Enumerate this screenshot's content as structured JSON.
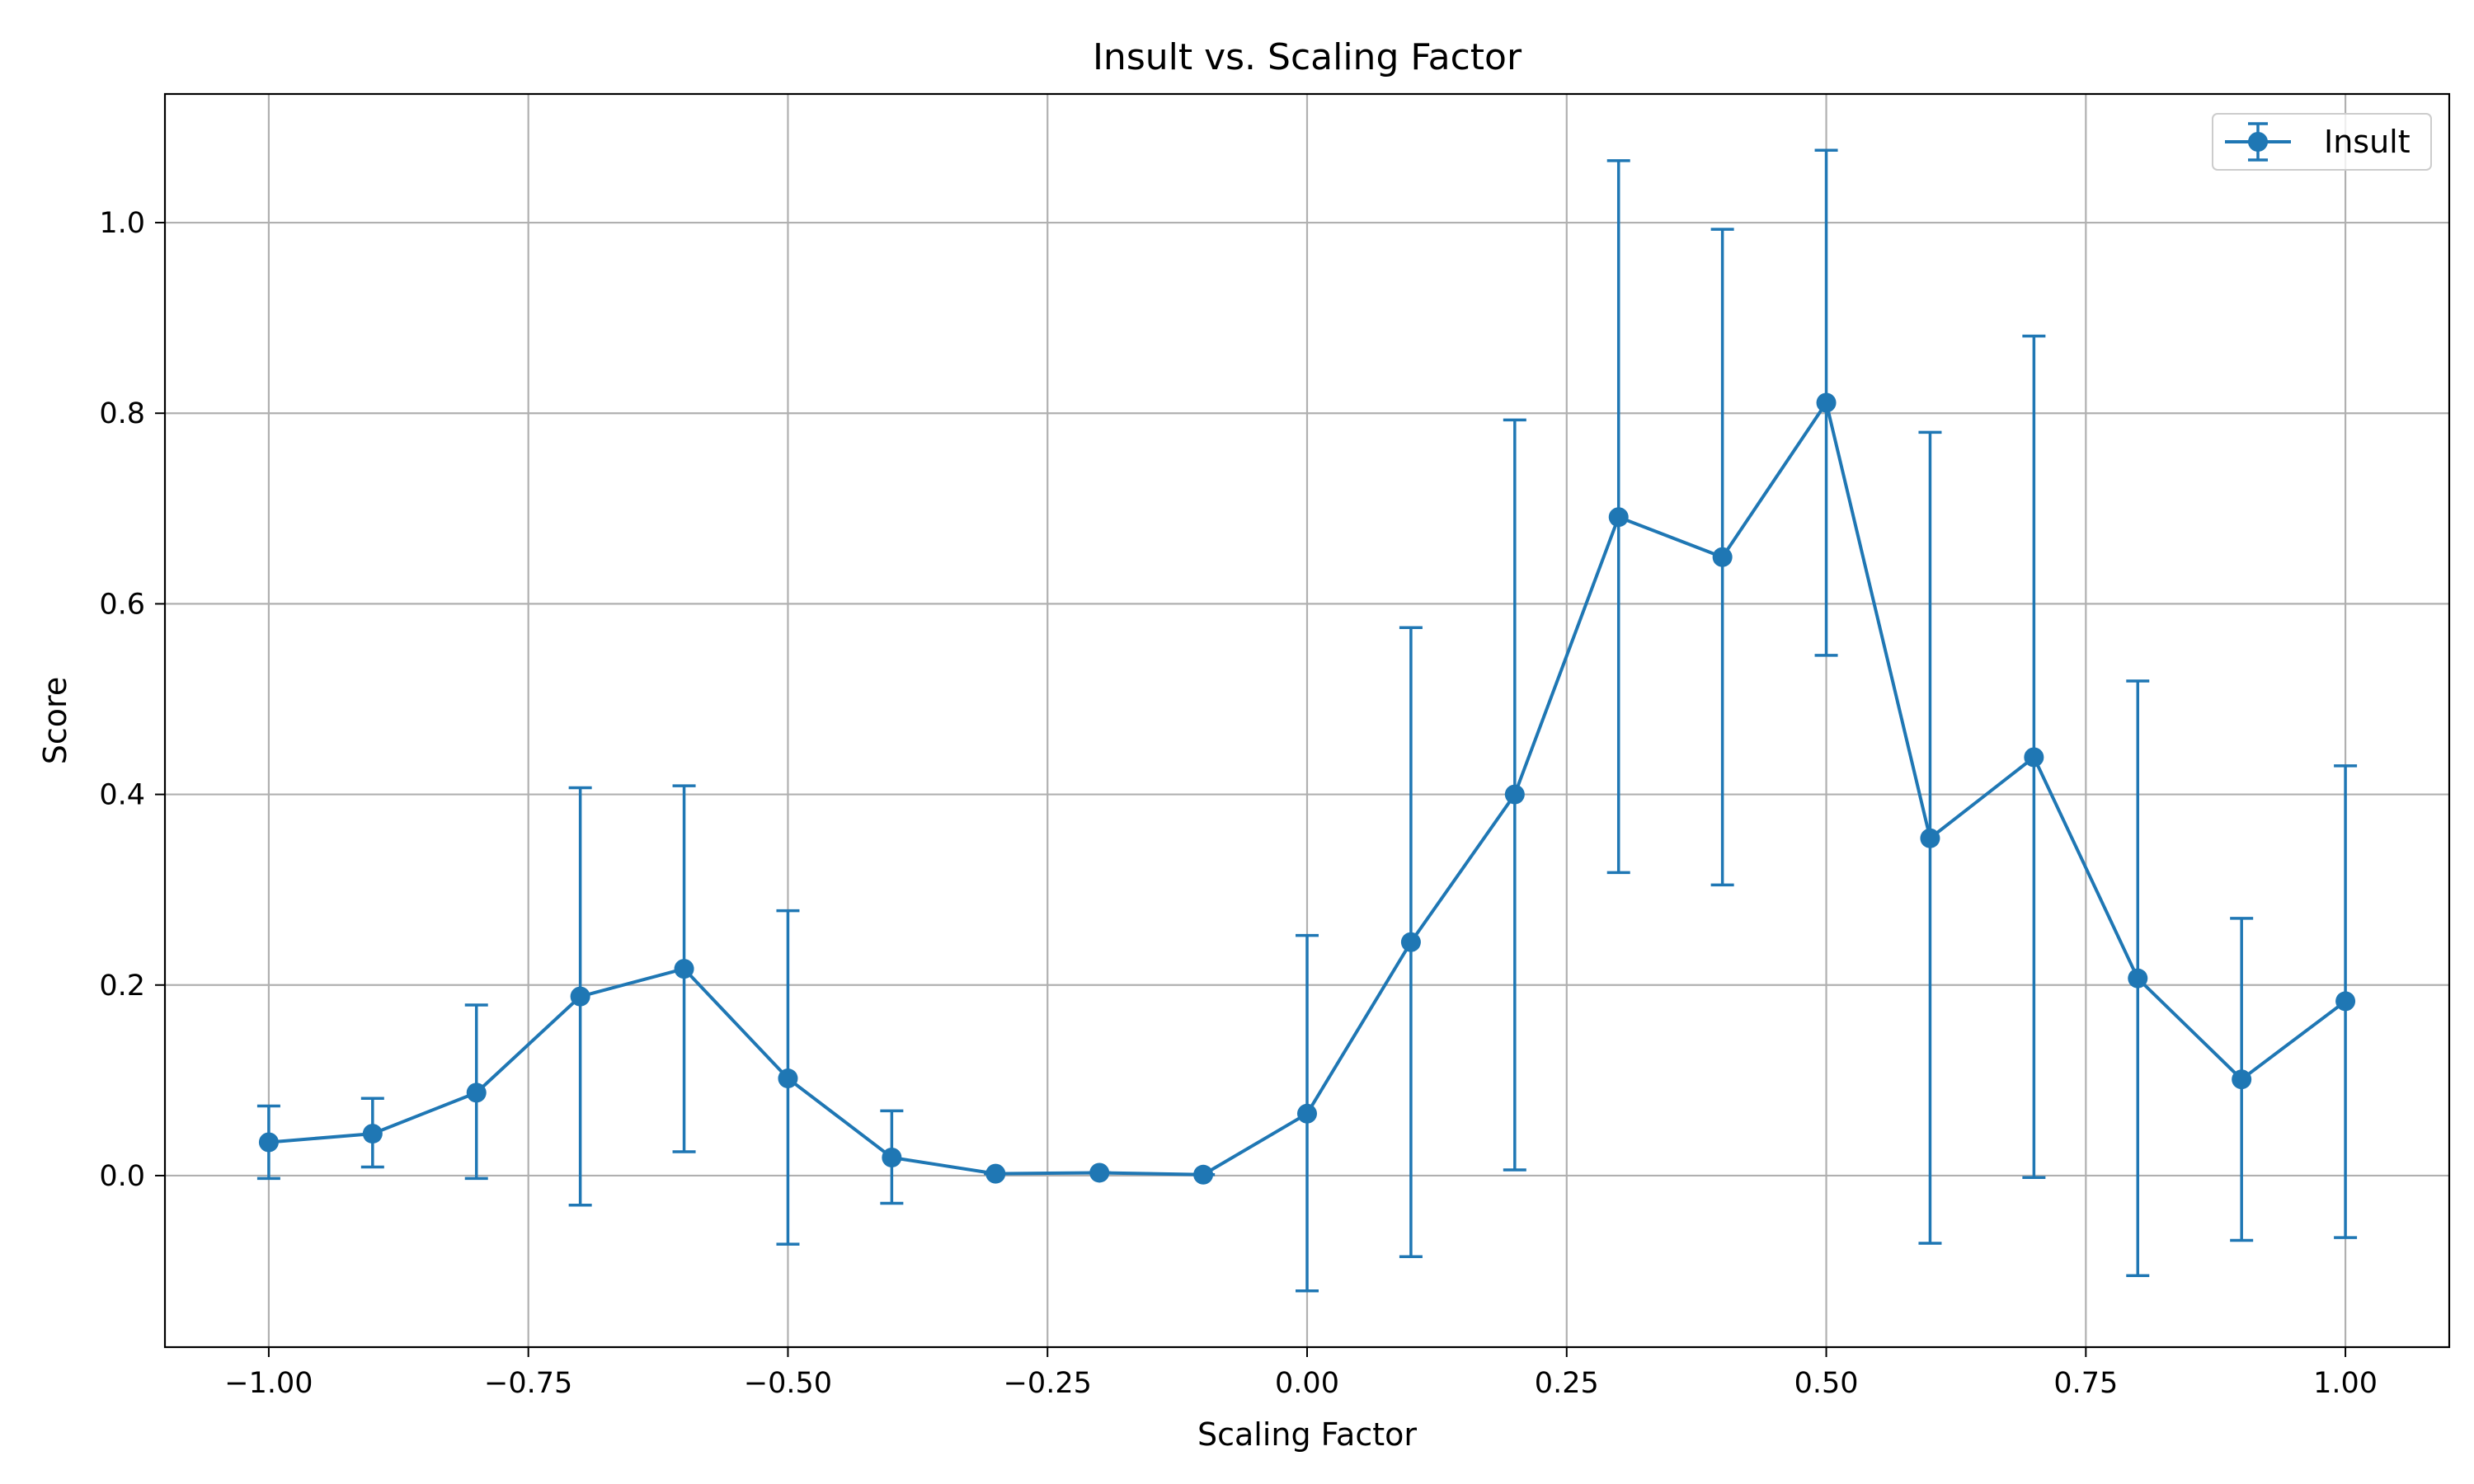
{
  "chart_data": {
    "type": "line",
    "title": "Insult vs. Scaling Factor",
    "xlabel": "Scaling Factor",
    "ylabel": "Score",
    "xlim": [
      -1.1,
      1.1
    ],
    "ylim": [
      -0.18,
      1.135
    ],
    "x_ticks": [
      -1.0,
      -0.75,
      -0.5,
      -0.25,
      0.0,
      0.25,
      0.5,
      0.75,
      1.0
    ],
    "x_tick_labels": [
      "−1.00",
      "−0.75",
      "−0.50",
      "−0.25",
      "0.00",
      "0.25",
      "0.50",
      "0.75",
      "1.00"
    ],
    "y_ticks": [
      0.0,
      0.2,
      0.4,
      0.6,
      0.8,
      1.0
    ],
    "y_tick_labels": [
      "0.0",
      "0.2",
      "0.4",
      "0.6",
      "0.8",
      "1.0"
    ],
    "grid": true,
    "legend_position": "top-right",
    "series": [
      {
        "name": "Insult",
        "color": "#1f77b4",
        "marker": "circle",
        "error_bars": true,
        "x": [
          -1.0,
          -0.9,
          -0.8,
          -0.7,
          -0.6,
          -0.5,
          -0.4,
          -0.3,
          -0.2,
          -0.1,
          0.0,
          0.1,
          0.2,
          0.3,
          0.4,
          0.5,
          0.6,
          0.7,
          0.8,
          0.9,
          1.0
        ],
        "y": [
          0.035,
          0.044,
          0.087,
          0.188,
          0.217,
          0.102,
          0.019,
          0.002,
          0.003,
          0.001,
          0.065,
          0.245,
          0.4,
          0.691,
          0.649,
          0.811,
          0.354,
          0.439,
          0.207,
          0.101,
          0.183
        ],
        "y_low": [
          -0.003,
          0.009,
          -0.003,
          -0.031,
          0.025,
          -0.072,
          -0.029,
          0.002,
          0.003,
          0.001,
          -0.121,
          -0.085,
          0.006,
          0.318,
          0.305,
          0.546,
          -0.071,
          -0.002,
          -0.105,
          -0.068,
          -0.065
        ],
        "y_high": [
          0.073,
          0.081,
          0.179,
          0.407,
          0.409,
          0.278,
          0.068,
          0.002,
          0.003,
          0.001,
          0.252,
          0.575,
          0.793,
          1.065,
          0.993,
          1.076,
          0.78,
          0.881,
          0.519,
          0.27,
          0.43
        ]
      }
    ]
  }
}
